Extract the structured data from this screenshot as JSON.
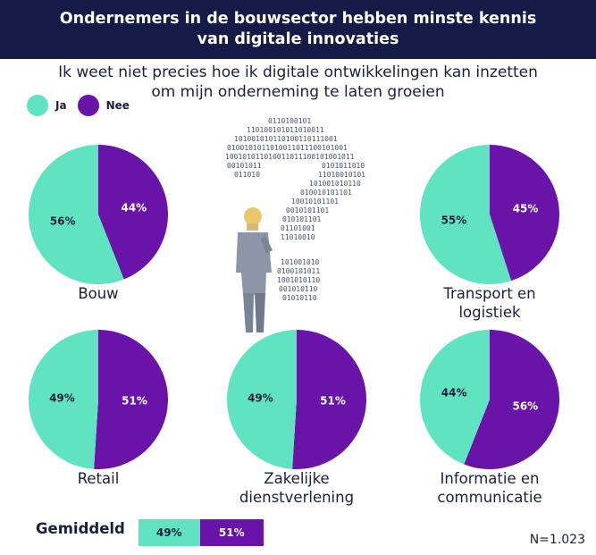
{
  "header": {
    "line1": "Ondernemers in de bouwsector hebben minste kennis",
    "line2": "van digitale innovaties"
  },
  "subtitle": {
    "line1": "Ik weet niet precies hoe ik digitale ontwikkelingen kan inzetten",
    "line2": "om mijn onderneming te laten groeien"
  },
  "colors": {
    "ja": "#5fe3c0",
    "nee": "#6a13a8",
    "header_bg": "#141b47"
  },
  "chart_data": {
    "type": "pie",
    "title": "Ik weet niet precies hoe ik digitale ontwikkelingen kan inzetten om mijn onderneming te laten groeien",
    "legend": [
      "Ja",
      "Nee"
    ],
    "charts": [
      {
        "category": "Bouw",
        "label_lines": [
          "Bouw"
        ],
        "ja": 56,
        "nee": 44
      },
      {
        "category": "Transport en logistiek",
        "label_lines": [
          "Transport en",
          "logistiek"
        ],
        "ja": 55,
        "nee": 45
      },
      {
        "category": "Retail",
        "label_lines": [
          "Retail"
        ],
        "ja": 49,
        "nee": 51
      },
      {
        "category": "Zakelijke dienstverlening",
        "label_lines": [
          "Zakelijke",
          "dienstverlening"
        ],
        "ja": 49,
        "nee": 51
      },
      {
        "category": "Informatie en communicatie",
        "label_lines": [
          "Informatie en",
          "communicatie"
        ],
        "ja": 44,
        "nee": 56
      }
    ],
    "average": {
      "label": "Gemiddeld",
      "ja": 49,
      "nee": 51
    }
  },
  "legend_labels": {
    "ja": "Ja",
    "nee": "Nee"
  },
  "footnote": "N=1.023"
}
